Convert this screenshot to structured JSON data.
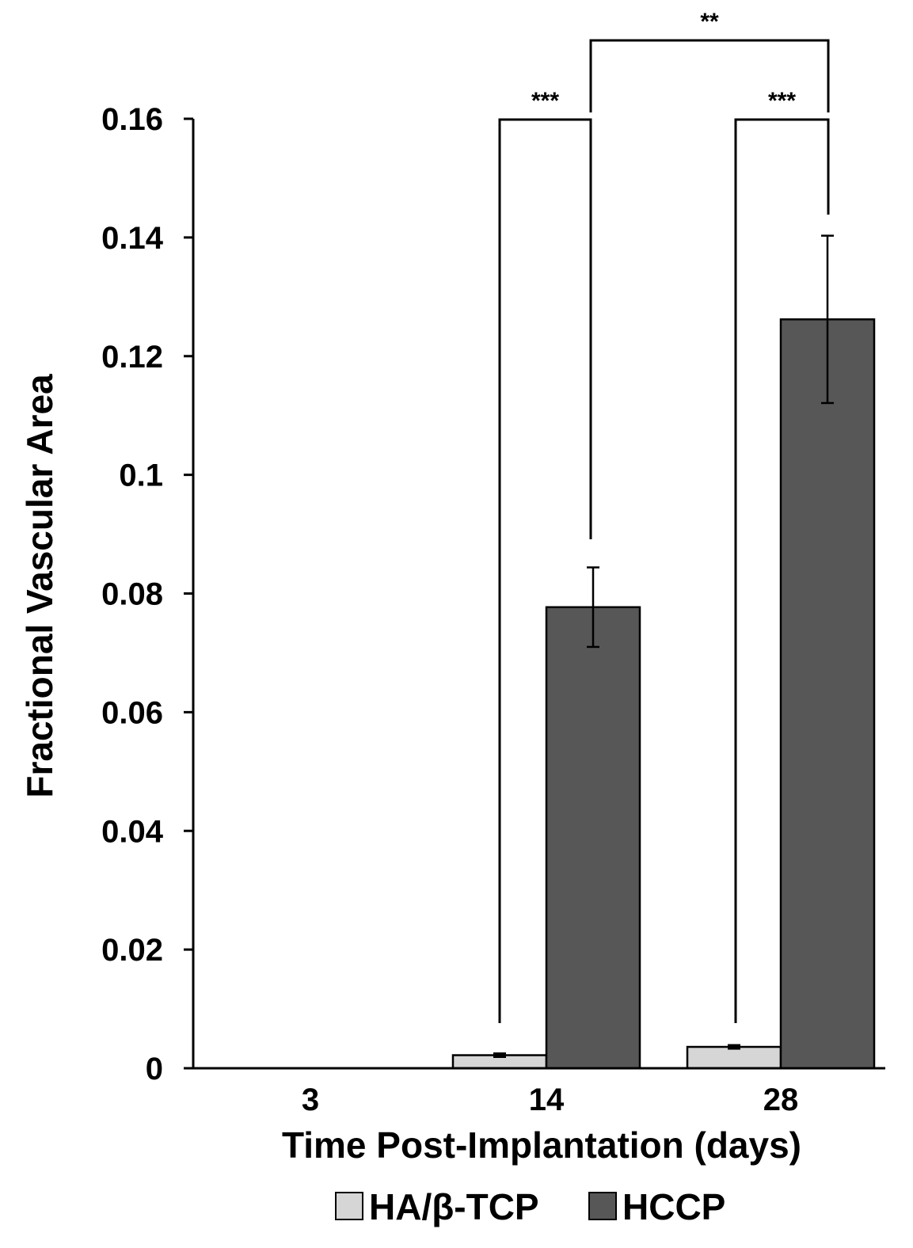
{
  "chart_data": {
    "type": "bar",
    "title": "",
    "xlabel": "Time Post-Implantation (days)",
    "ylabel": "Fractional Vascular Area",
    "categories": [
      "3",
      "14",
      "28"
    ],
    "ylim": [
      0,
      0.16
    ],
    "yticks": [
      "0",
      "0.02",
      "0.04",
      "0.06",
      "0.08",
      "0.1",
      "0.12",
      "0.14",
      "0.16"
    ],
    "ytick_values": [
      0,
      0.02,
      0.04,
      0.06,
      0.08,
      0.1,
      0.12,
      0.14,
      0.16
    ],
    "series": [
      {
        "name": "HA/β-TCP",
        "color": "#d6d6d6",
        "values": [
          null,
          0.0022,
          0.0036
        ],
        "errors": [
          null,
          0.0003,
          0.0003
        ]
      },
      {
        "name": "HCCP",
        "color": "#575757",
        "values": [
          null,
          0.0777,
          0.1262
        ],
        "errors": [
          null,
          0.0067,
          0.0141
        ]
      }
    ],
    "grid": false,
    "legend_position": "bottom",
    "significance": [
      {
        "label": "***",
        "between": "HA/β-TCP vs HCCP at day 14"
      },
      {
        "label": "***",
        "between": "HA/β-TCP vs HCCP at day 28"
      },
      {
        "label": "**",
        "between": "HCCP day 14 vs HCCP day 28"
      }
    ]
  }
}
